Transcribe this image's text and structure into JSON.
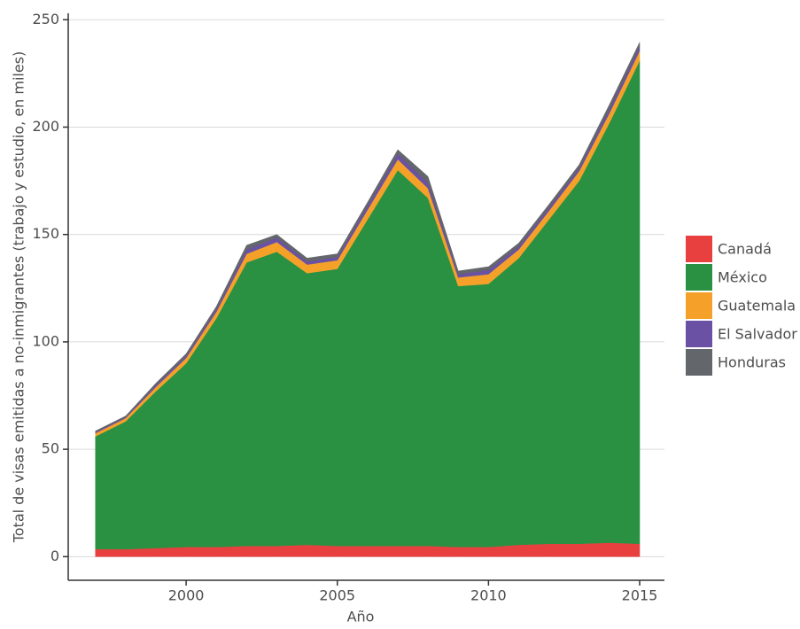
{
  "chart_data": {
    "type": "stacked-area",
    "x_label": "Año",
    "y_label": "Total de visas emitidas a no-inmigrantes (trabajo y estudio, en miles)",
    "x": [
      1997,
      1998,
      1999,
      2000,
      2001,
      2002,
      2003,
      2004,
      2005,
      2006,
      2007,
      2008,
      2009,
      2010,
      2011,
      2012,
      2013,
      2014,
      2015
    ],
    "series": [
      {
        "name": "Canadá",
        "color": "#e8403f",
        "values": [
          3.5,
          3.5,
          4,
          4.5,
          4.5,
          5,
          5,
          5.5,
          5,
          5,
          5,
          5,
          4.5,
          4.5,
          5.5,
          6,
          6,
          6.5,
          6
        ]
      },
      {
        "name": "México",
        "color": "#2a9142",
        "values": [
          52.5,
          59.5,
          73,
          85.5,
          106.5,
          132,
          137,
          126.5,
          129,
          152,
          175,
          162,
          121.5,
          122.5,
          133.5,
          151,
          169,
          195.5,
          225
        ]
      },
      {
        "name": "Guatemala",
        "color": "#f5a129",
        "values": [
          1.5,
          1.5,
          2,
          2.5,
          3,
          4,
          4.5,
          4,
          4,
          4.5,
          5,
          4.5,
          4,
          4.5,
          4,
          4,
          4.5,
          4.5,
          4.5
        ]
      },
      {
        "name": "El Salvador",
        "color": "#6a51a3",
        "values": [
          0.5,
          0.5,
          0.8,
          1,
          1.2,
          2,
          2,
          1.5,
          1.5,
          2,
          2.5,
          2.5,
          1.5,
          2,
          1.5,
          1.5,
          1.5,
          2,
          2
        ]
      },
      {
        "name": "Honduras",
        "color": "#63666a",
        "values": [
          0.5,
          0.5,
          1,
          1,
          1.3,
          2,
          1.5,
          1.5,
          1.5,
          1.5,
          2,
          3,
          1.5,
          1.5,
          1.5,
          1.5,
          1.5,
          2,
          2
        ]
      }
    ],
    "xlim": [
      1996.1,
      2015.82
    ],
    "xticks": [
      2000,
      2005,
      2010,
      2015
    ],
    "ylim": [
      -11,
      253
    ],
    "yticks": [
      0,
      50,
      100,
      150,
      200,
      250
    ],
    "grid": true,
    "legend": "right"
  }
}
